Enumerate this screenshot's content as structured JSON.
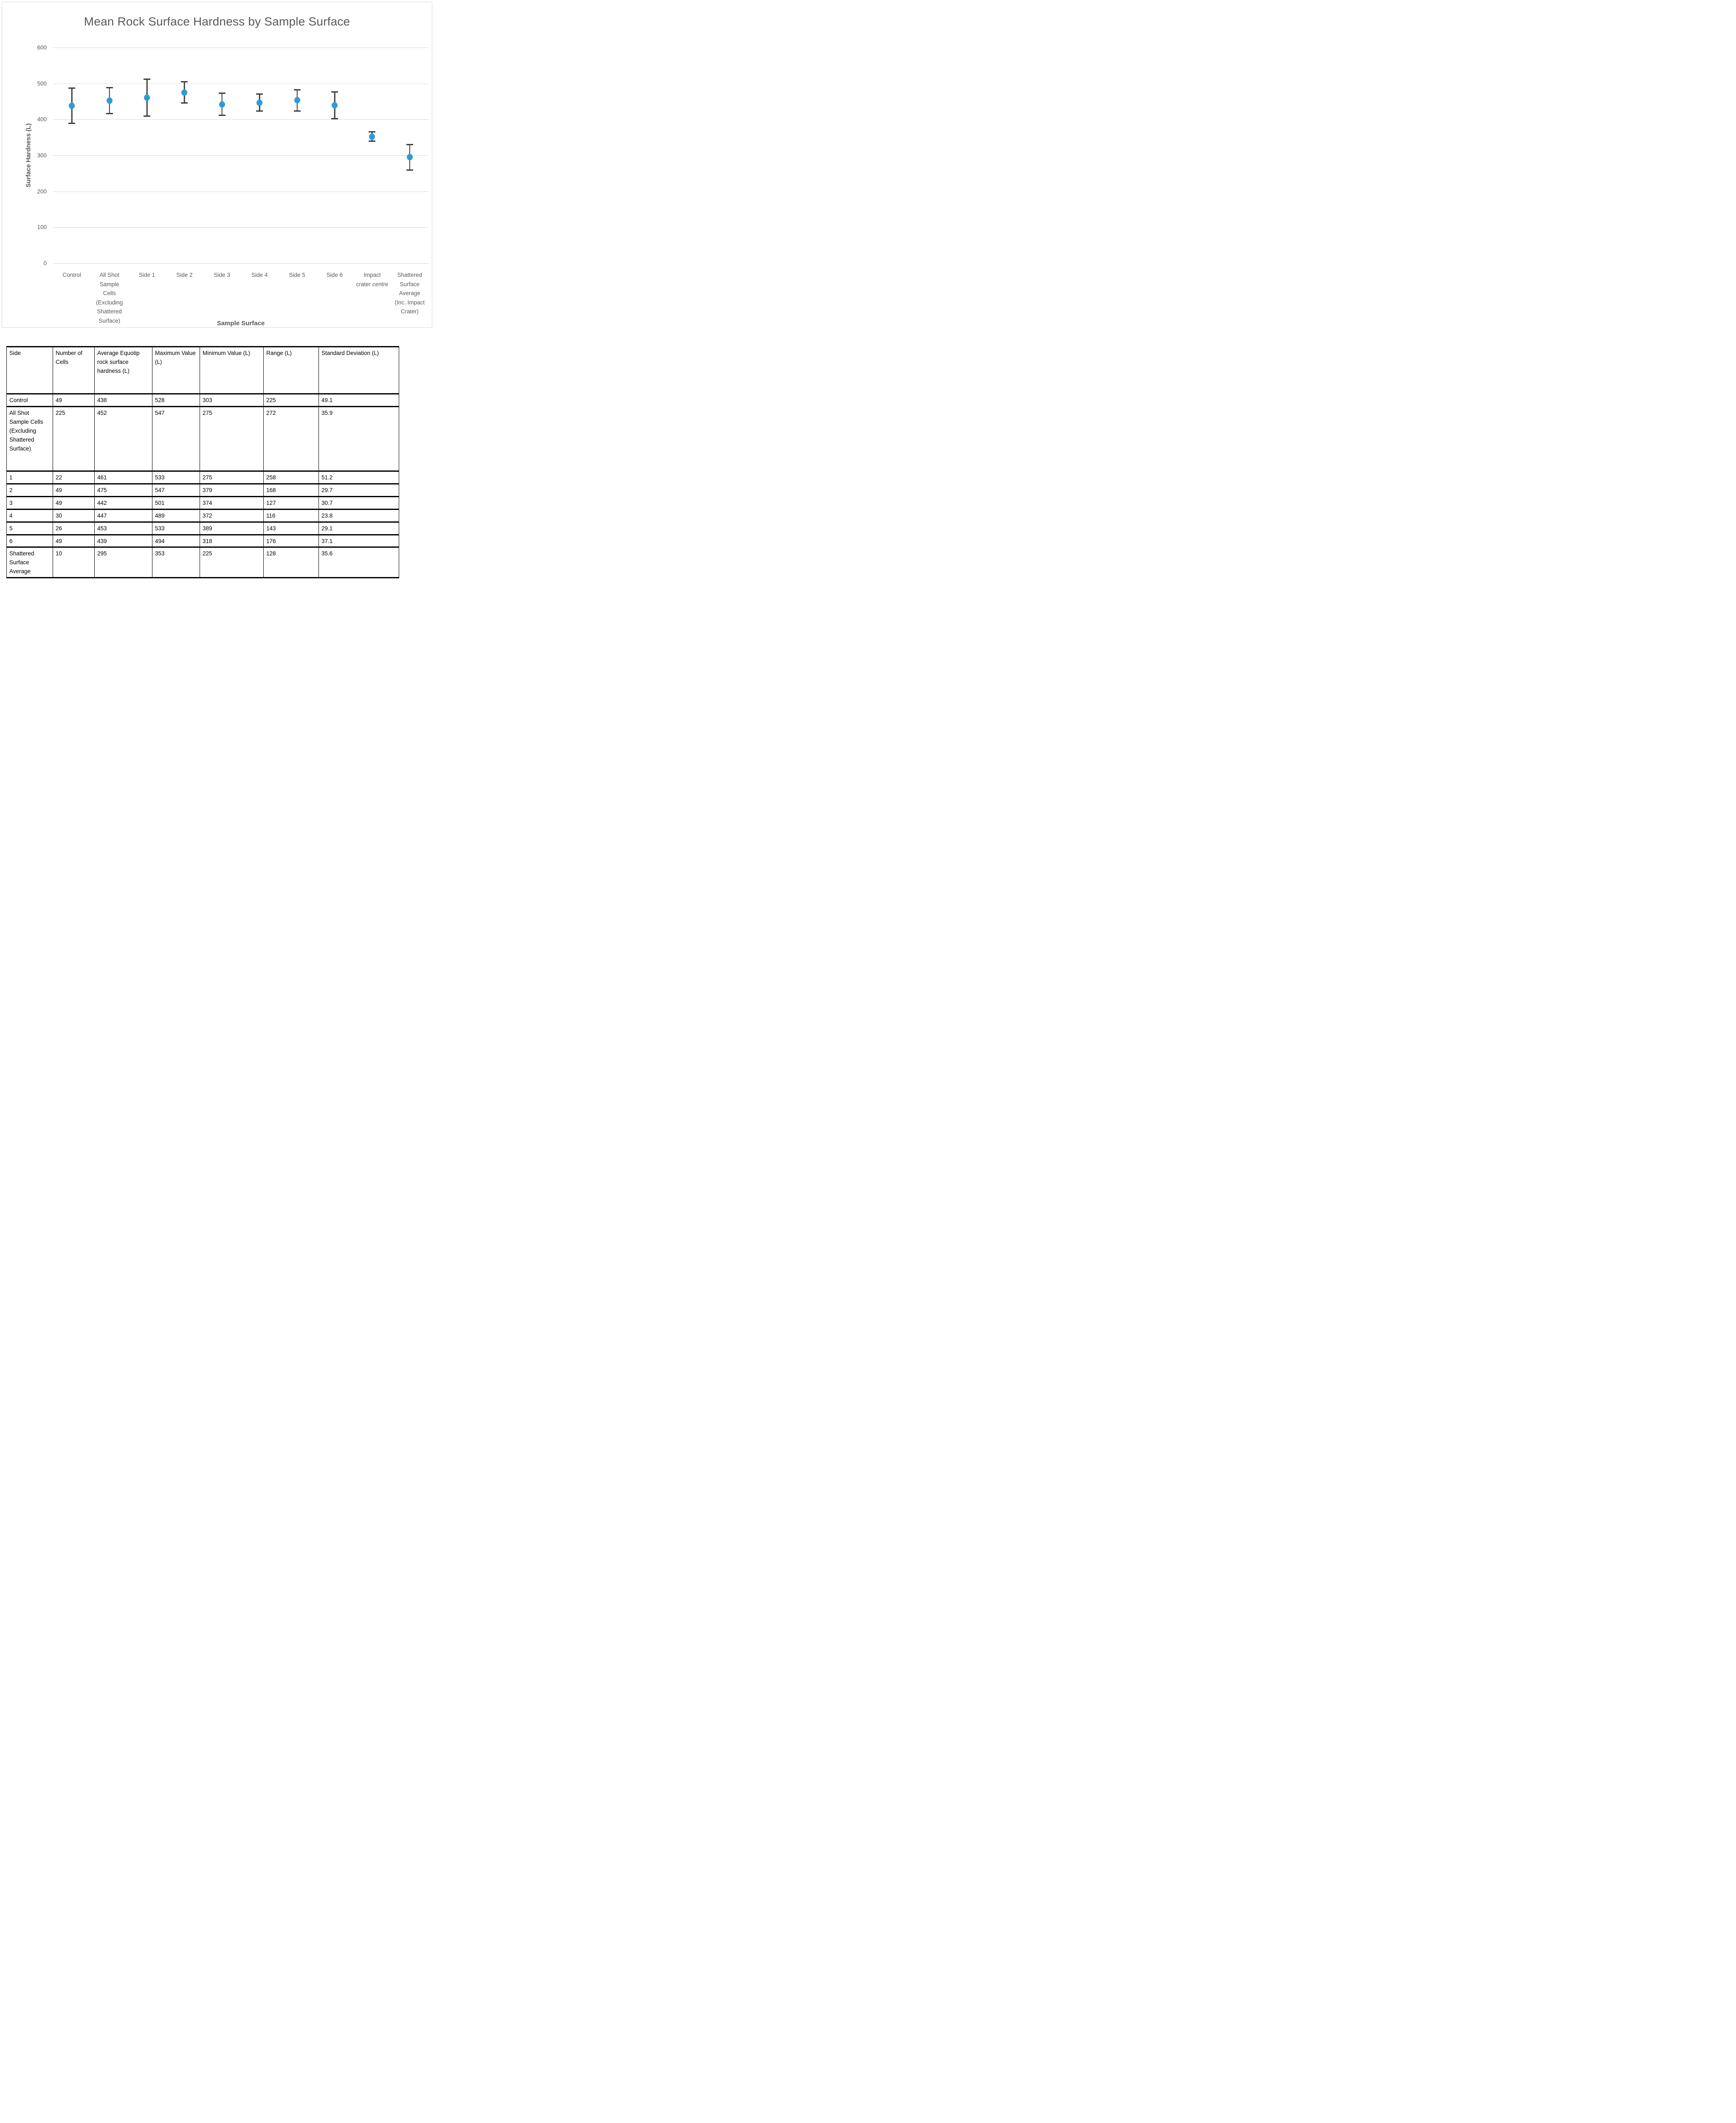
{
  "chart_data": {
    "type": "scatter",
    "title": "Mean Rock Surface Hardness by Sample Surface",
    "xlabel": "Sample Surface",
    "ylabel": "Surface Hardness (L)",
    "ylim": [
      0,
      600
    ],
    "ytick_step": 100,
    "ytick_labels": [
      "0",
      "100",
      "200",
      "300",
      "400",
      "500",
      "600"
    ],
    "grid": true,
    "legend": "none",
    "error_bars": "plus-minus one standard deviation",
    "marker_color": "#2e9bd8",
    "error_bar_color": "#3c3c3c",
    "gridline_color": "#d9d9d9",
    "text_color": "#595959",
    "categories": [
      "Control",
      "All Shot Sample Cells (Excluding Shattered Surface)",
      "Side 1",
      "Side 2",
      "Side 3",
      "Side 4",
      "Side 5",
      "Side 6",
      "Impact crater centre",
      "Shattered Surface Average (Inc. Impact Crater)"
    ],
    "means": [
      438,
      452,
      461,
      475,
      442,
      447,
      453,
      439,
      352,
      295
    ],
    "errors": [
      49.1,
      35.9,
      51.2,
      29.7,
      30.7,
      23.8,
      29.1,
      37.1,
      13,
      35.6
    ]
  },
  "table": {
    "headers": [
      "Side",
      "Number of Cells",
      "Average Equotip rock surface hardness (L)",
      "Maximum Value (L)",
      "Minimum Value (L)",
      "Range (L)",
      "Standard Deviation (L)"
    ],
    "rows": [
      [
        "Control",
        "49",
        "438",
        "528",
        "303",
        "225",
        "49.1"
      ],
      [
        "All Shot Sample Cells (Excluding Shattered Surface)",
        "225",
        "452",
        "547",
        "275",
        "272",
        "35.9"
      ],
      [
        "1",
        "22",
        "461",
        "533",
        "275",
        "258",
        "51.2"
      ],
      [
        "2",
        "49",
        "475",
        "547",
        "379",
        "168",
        "29.7"
      ],
      [
        "3",
        "49",
        "442",
        "501",
        "374",
        "127",
        "30.7"
      ],
      [
        "4",
        "30",
        "447",
        "489",
        "372",
        "116",
        "23.8"
      ],
      [
        "5",
        "26",
        "453",
        "533",
        "389",
        "143",
        "29.1"
      ],
      [
        "6",
        "49",
        "439",
        "494",
        "318",
        "176",
        "37.1"
      ],
      [
        "Shattered Surface Average",
        "10",
        "295",
        "353",
        "225",
        "128",
        "35.6"
      ]
    ]
  }
}
